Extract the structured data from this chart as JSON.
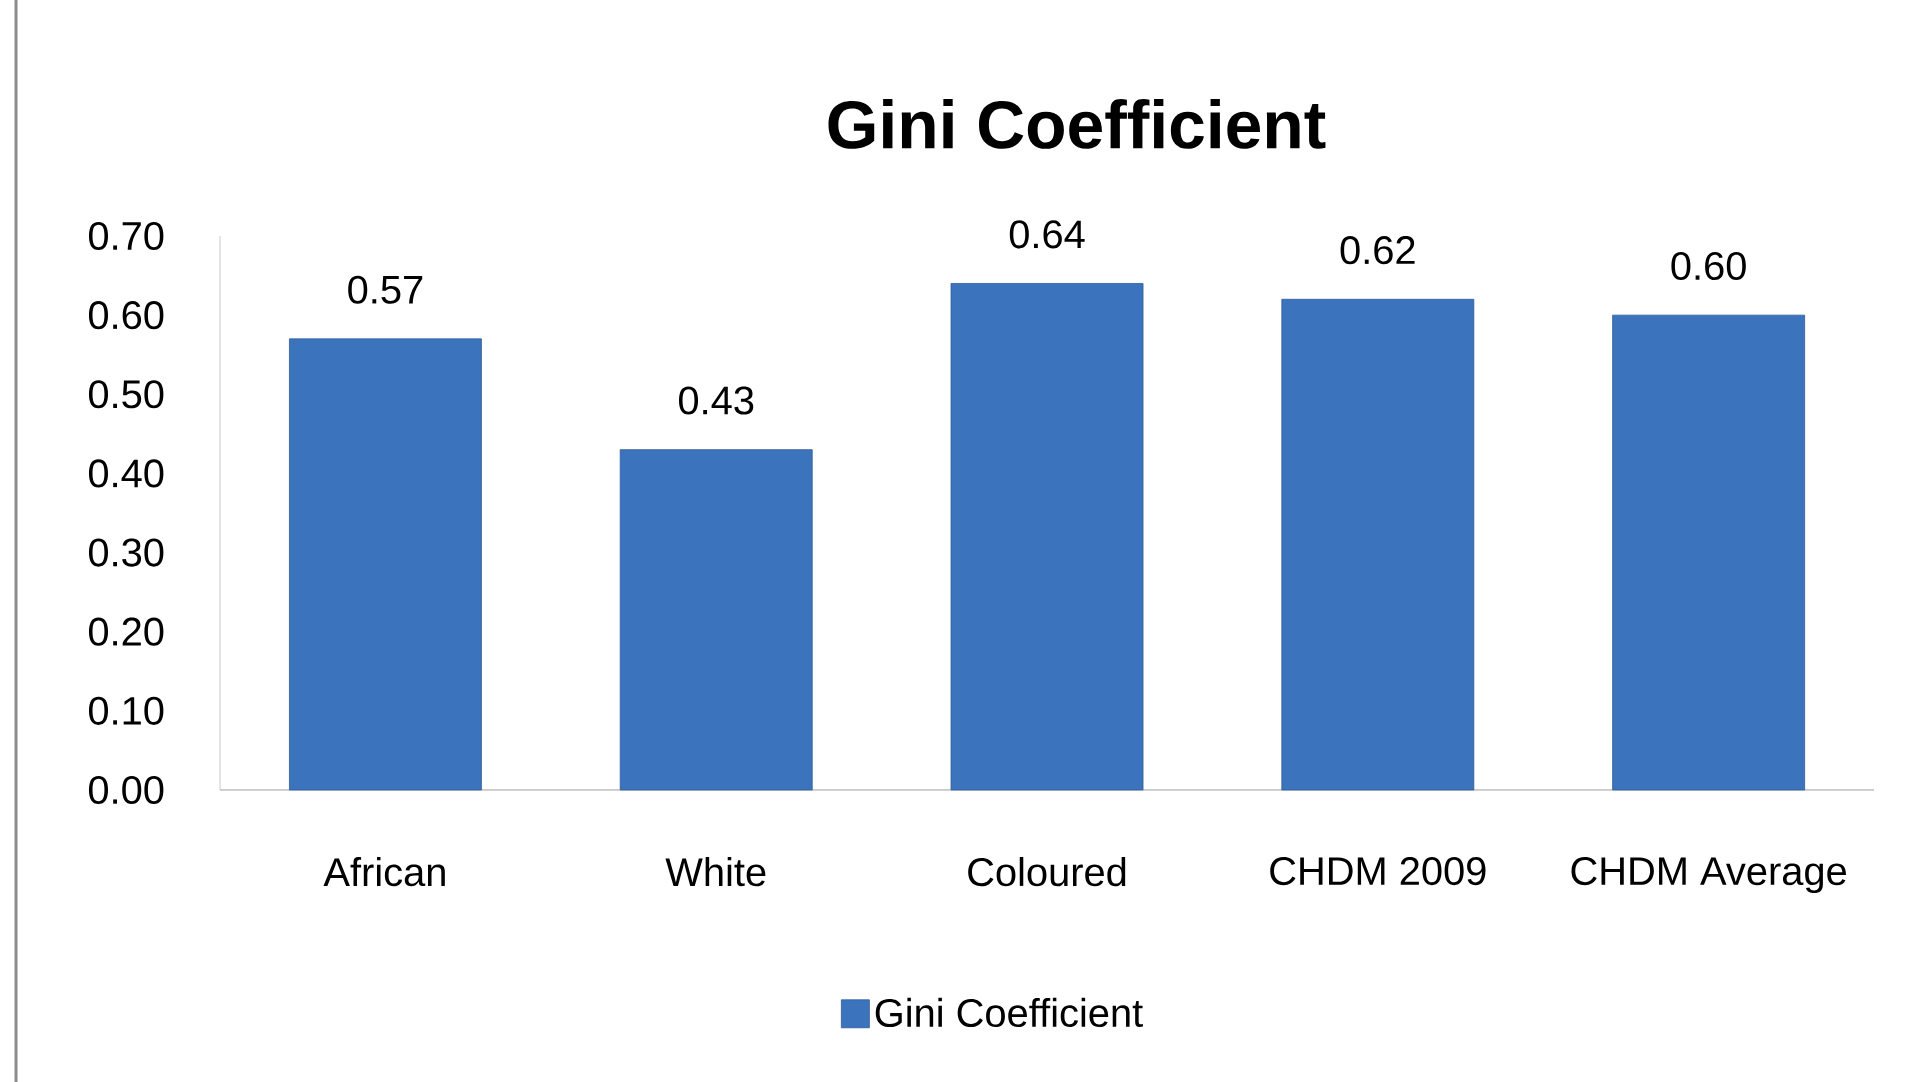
{
  "chart_data": {
    "type": "bar",
    "title": "Gini Coefficient",
    "categories": [
      "African",
      "White",
      "Coloured",
      "CHDM 2009",
      "CHDM Average"
    ],
    "series": [
      {
        "name": "Gini Coefficient",
        "color": "#3b73bd",
        "values": [
          0.57,
          0.43,
          0.64,
          0.62,
          0.6
        ],
        "value_labels": [
          "0.57",
          "0.43",
          "0.64",
          "0.62",
          "0.60"
        ]
      }
    ],
    "ylim": [
      0,
      0.7
    ],
    "yticks": [
      {
        "value": 0,
        "label": "0.00"
      },
      {
        "value": 0.1,
        "label": "0.10"
      },
      {
        "value": 0.2,
        "label": "0.20"
      },
      {
        "value": 0.3,
        "label": "0.30"
      },
      {
        "value": 0.4,
        "label": "0.40"
      },
      {
        "value": 0.5,
        "label": "0.50"
      },
      {
        "value": 0.6,
        "label": "0.60"
      },
      {
        "value": 0.7,
        "label": "0.70"
      }
    ],
    "legend": "bottom"
  }
}
